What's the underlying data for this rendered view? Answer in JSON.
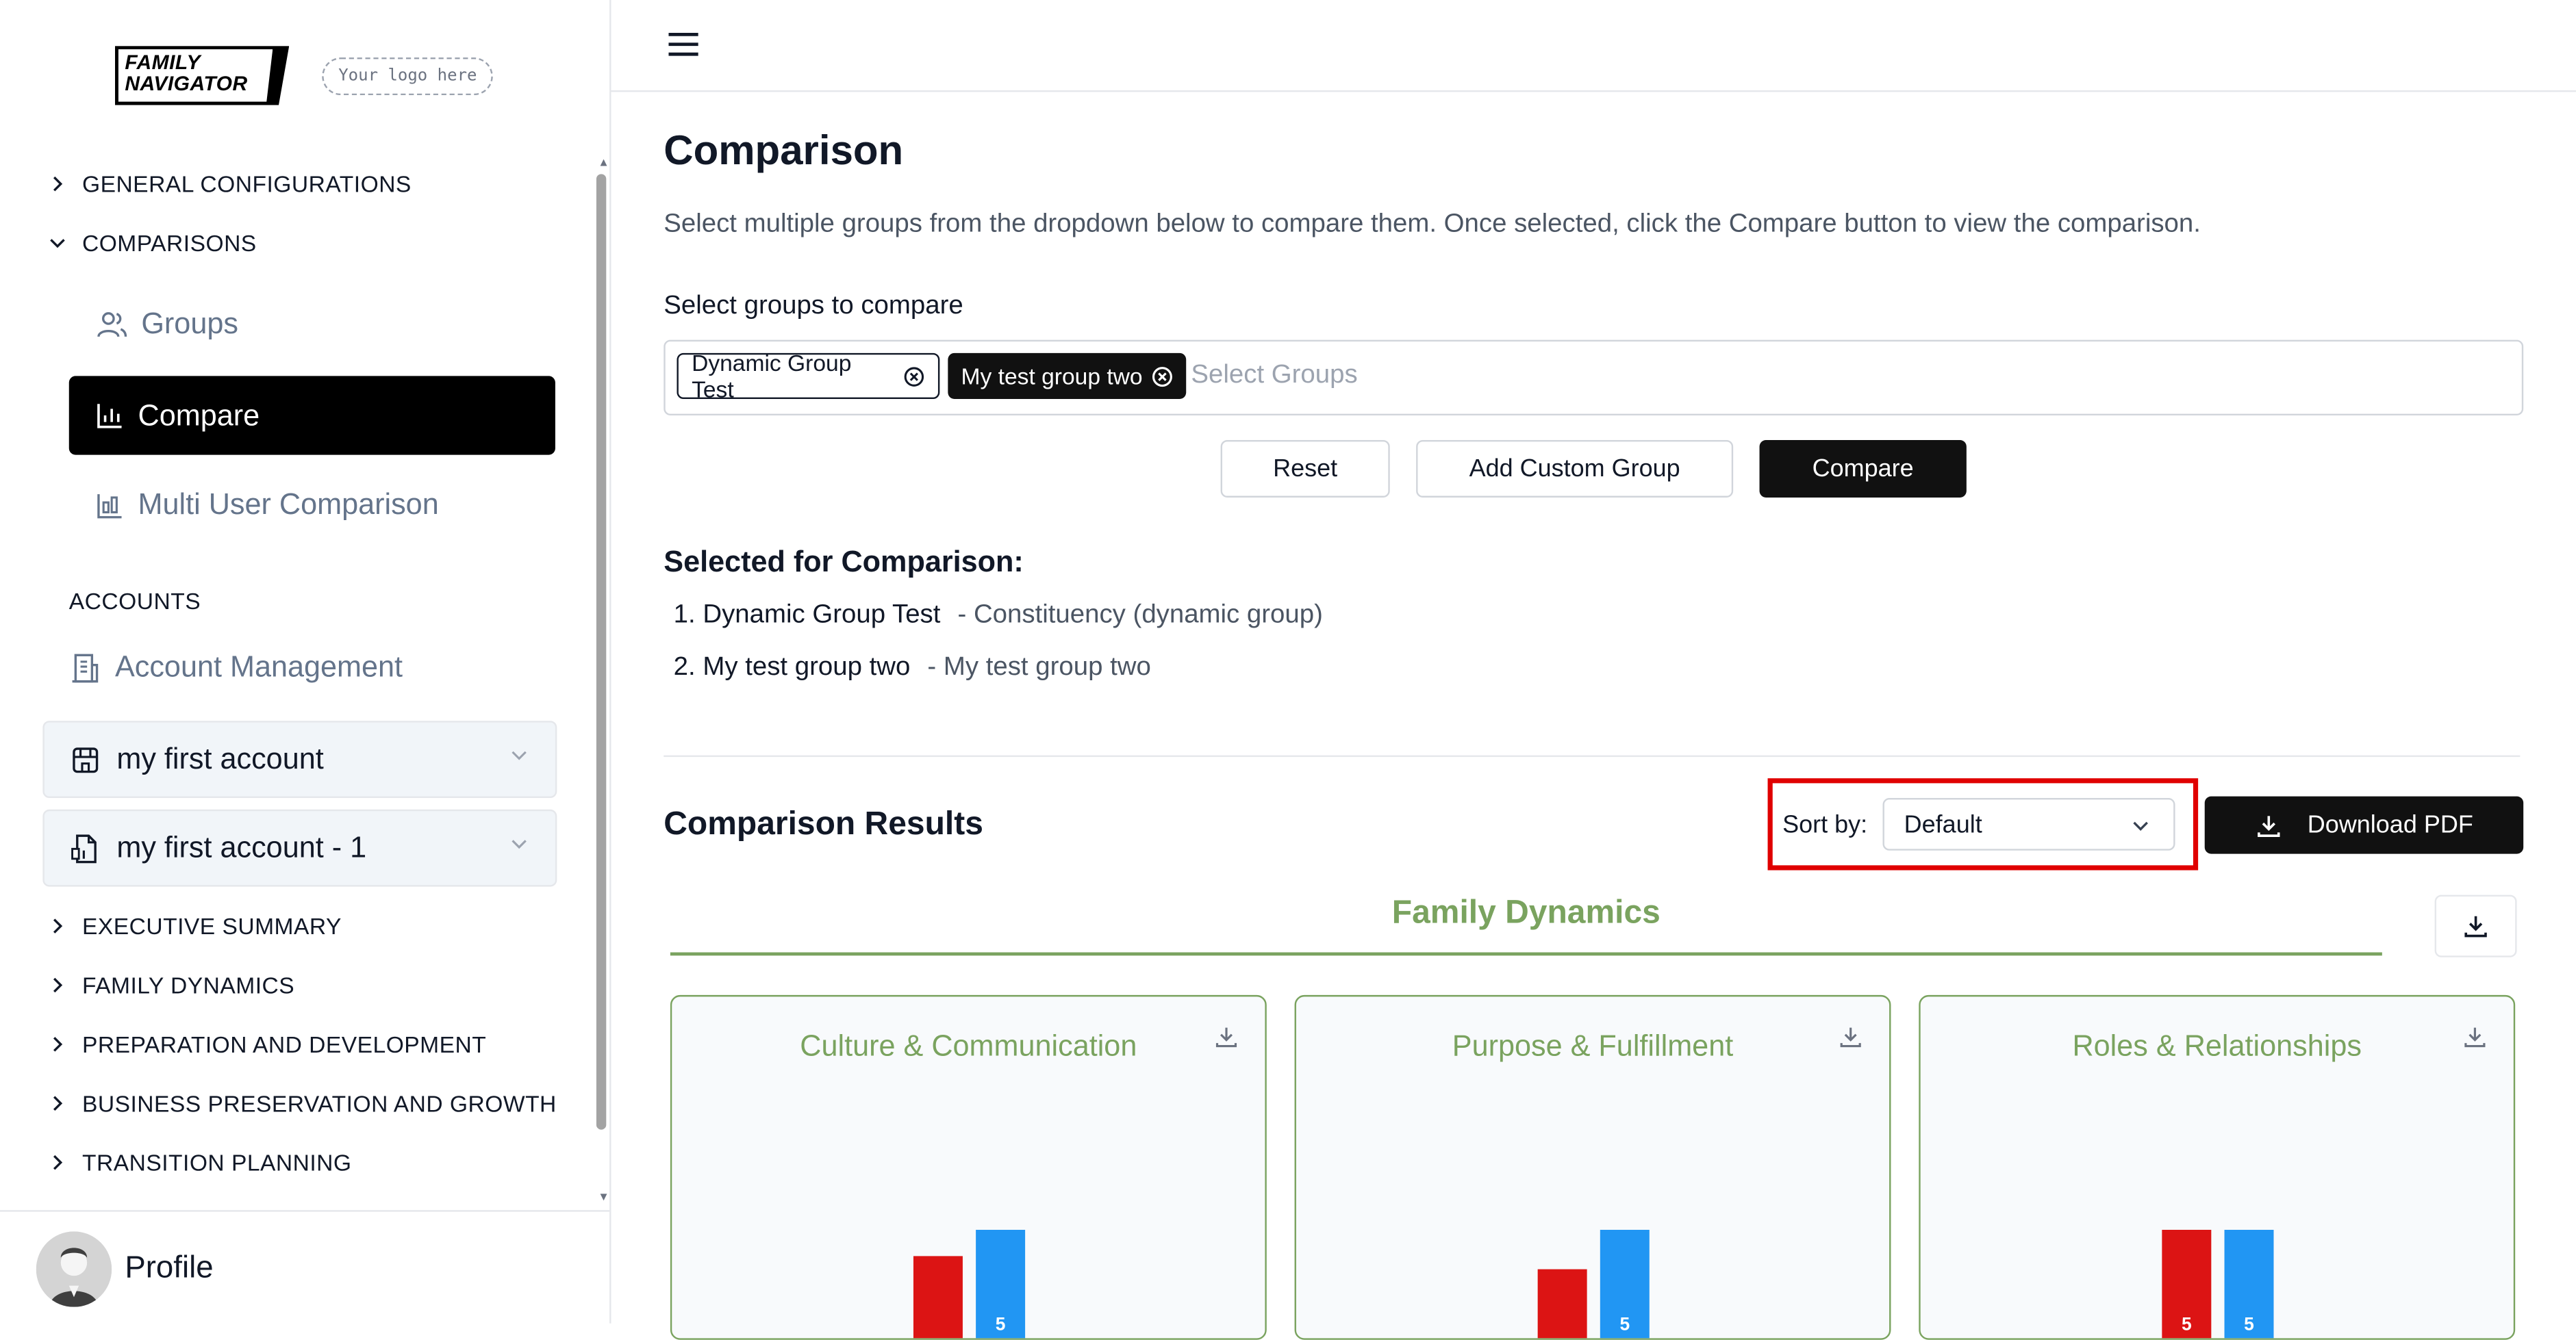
{
  "sidebar": {
    "logo_line1": "FAMILY",
    "logo_line2": "NAVIGATOR",
    "logo_placeholder": "Your logo here",
    "general": "GENERAL CONFIGURATIONS",
    "comparisons": "COMPARISONS",
    "groups": "Groups",
    "compare": "Compare",
    "multi_user": "Multi User Comparison",
    "accounts_heading": "ACCOUNTS",
    "account_management": "Account Management",
    "accounts": [
      "my first account",
      "my first account - 1"
    ],
    "sections": [
      "EXECUTIVE SUMMARY",
      "FAMILY DYNAMICS",
      "PREPARATION AND DEVELOPMENT",
      "BUSINESS PRESERVATION AND GROWTH",
      "TRANSITION PLANNING"
    ],
    "profile": "Profile"
  },
  "main": {
    "title": "Comparison",
    "description": "Select multiple groups from the dropdown below to compare them. Once selected, click the Compare button to view the comparison.",
    "select_label": "Select groups to compare",
    "chips": [
      "Dynamic Group Test",
      "My test group two"
    ],
    "select_placeholder": "Select Groups",
    "buttons": {
      "reset": "Reset",
      "add_custom": "Add Custom Group",
      "compare": "Compare"
    },
    "selected_title": "Selected for Comparison:",
    "selected": [
      {
        "num": "1.",
        "name": "Dynamic Group Test",
        "desc": "- Constituency (dynamic group)"
      },
      {
        "num": "2.",
        "name": "My test group two",
        "desc": "- My test group two"
      }
    ],
    "results_title": "Comparison Results",
    "sort_label": "Sort by:",
    "sort_value": "Default",
    "download_pdf": "Download PDF",
    "section_title": "Family Dynamics"
  },
  "colors": {
    "accent_green": "#7aa35f",
    "bar_red": "#dc1414",
    "bar_blue": "#2196f3",
    "highlight": "#e00000"
  },
  "chart_data": [
    {
      "type": "bar",
      "title": "Culture & Communication",
      "values": [
        null,
        5
      ]
    },
    {
      "type": "bar",
      "title": "Purpose & Fulfillment",
      "values": [
        null,
        5
      ]
    },
    {
      "type": "bar",
      "title": "Roles & Relationships",
      "values": [
        5,
        5
      ]
    }
  ]
}
